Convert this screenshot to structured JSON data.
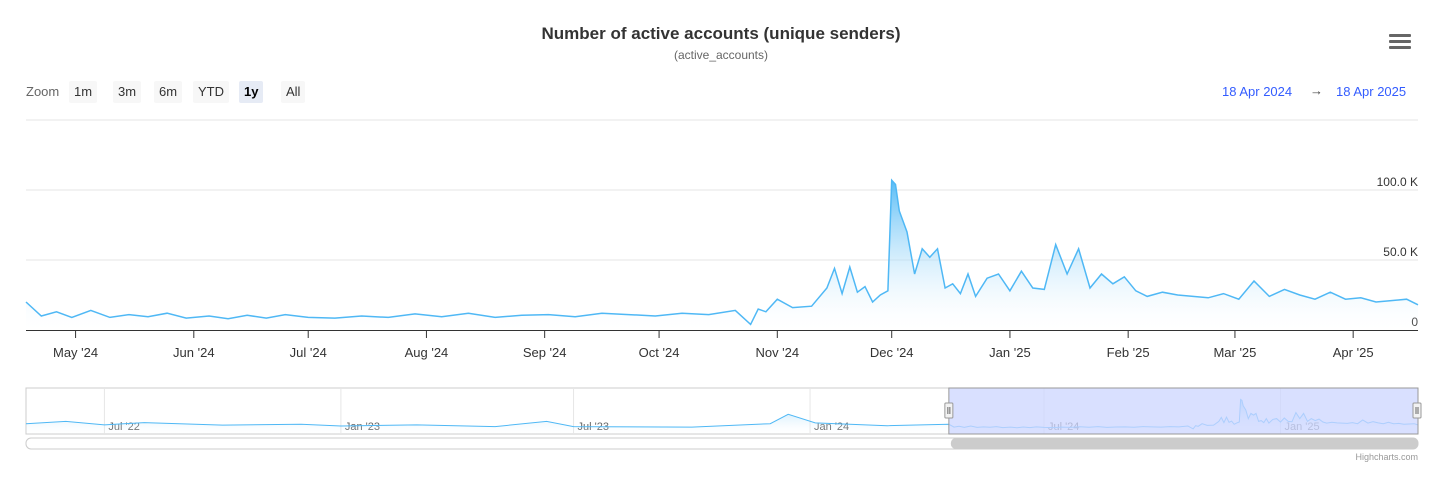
{
  "title": "Number of active accounts (unique senders)",
  "subtitle": "(active_accounts)",
  "zoom": {
    "label": "Zoom",
    "buttons": [
      "1m",
      "3m",
      "6m",
      "YTD",
      "1y",
      "All"
    ],
    "selected": "1y"
  },
  "range": {
    "from": "18 Apr 2024",
    "arrow": "→",
    "to": "18 Apr 2025"
  },
  "credits": "Highcharts.com",
  "colors": {
    "line": "#4fb8f5",
    "fill_top": "#4fb8f5",
    "fill_bottom": "#ffffff",
    "range_link": "#335cff",
    "navigator_mask": "#ccd6ff"
  },
  "chart_data": {
    "type": "area",
    "x_start": "2024-04-18",
    "x_end": "2025-04-18",
    "x_ticks": [
      "May '24",
      "Jun '24",
      "Jul '24",
      "Aug '24",
      "Sep '24",
      "Oct '24",
      "Nov '24",
      "Dec '24",
      "Jan '25",
      "Feb '25",
      "Mar '25",
      "Apr '25"
    ],
    "y_ticks": [
      "0",
      "50.0 K",
      "100.0 K"
    ],
    "ylim": [
      0,
      150000
    ],
    "grid": true,
    "series": [
      {
        "x": [
          "2024-04-18",
          "2024-04-22",
          "2024-04-26",
          "2024-04-30",
          "2024-05-05",
          "2024-05-10",
          "2024-05-15",
          "2024-05-20",
          "2024-05-25",
          "2024-05-30",
          "2024-06-05",
          "2024-06-10",
          "2024-06-15",
          "2024-06-20",
          "2024-06-25",
          "2024-07-01",
          "2024-07-08",
          "2024-07-15",
          "2024-07-22",
          "2024-07-29",
          "2024-08-05",
          "2024-08-12",
          "2024-08-19",
          "2024-08-26",
          "2024-09-02",
          "2024-09-09",
          "2024-09-16",
          "2024-09-23",
          "2024-09-30",
          "2024-10-07",
          "2024-10-14",
          "2024-10-21",
          "2024-10-25",
          "2024-10-27",
          "2024-10-29",
          "2024-11-01",
          "2024-11-05",
          "2024-11-10",
          "2024-11-14",
          "2024-11-16",
          "2024-11-18",
          "2024-11-20",
          "2024-11-22",
          "2024-11-24",
          "2024-11-26",
          "2024-11-28",
          "2024-11-30",
          "2024-12-01",
          "2024-12-02",
          "2024-12-03",
          "2024-12-05",
          "2024-12-07",
          "2024-12-09",
          "2024-12-11",
          "2024-12-13",
          "2024-12-15",
          "2024-12-17",
          "2024-12-19",
          "2024-12-21",
          "2024-12-23",
          "2024-12-26",
          "2024-12-29",
          "2025-01-01",
          "2025-01-04",
          "2025-01-07",
          "2025-01-10",
          "2025-01-13",
          "2025-01-16",
          "2025-01-19",
          "2025-01-22",
          "2025-01-25",
          "2025-01-28",
          "2025-01-31",
          "2025-02-03",
          "2025-02-06",
          "2025-02-10",
          "2025-02-14",
          "2025-02-18",
          "2025-02-22",
          "2025-02-26",
          "2025-03-02",
          "2025-03-06",
          "2025-03-10",
          "2025-03-14",
          "2025-03-18",
          "2025-03-22",
          "2025-03-26",
          "2025-03-30",
          "2025-04-03",
          "2025-04-07",
          "2025-04-11",
          "2025-04-15",
          "2025-04-18"
        ],
        "y": [
          20000,
          10000,
          13000,
          9000,
          14000,
          9000,
          11000,
          9500,
          12000,
          8500,
          10000,
          8000,
          10500,
          8500,
          11000,
          9000,
          8500,
          10000,
          9000,
          11500,
          9500,
          12000,
          9000,
          10500,
          11000,
          9500,
          12000,
          11000,
          10000,
          12000,
          11000,
          14000,
          4000,
          15000,
          13000,
          22000,
          16000,
          17000,
          30000,
          44000,
          26000,
          45000,
          27000,
          31000,
          20000,
          25000,
          28000,
          107000,
          104000,
          85000,
          70000,
          40000,
          58000,
          52000,
          58000,
          30000,
          33000,
          26000,
          40000,
          24000,
          37000,
          40000,
          28000,
          42000,
          30000,
          29000,
          61000,
          40000,
          58000,
          30000,
          40000,
          33000,
          38000,
          28000,
          24000,
          27000,
          25000,
          24000,
          23000,
          26000,
          22000,
          35000,
          24000,
          29000,
          25000,
          22000,
          27000,
          22000,
          23000,
          20000,
          21000,
          22000,
          18000
        ]
      }
    ],
    "navigator": {
      "x_ticks": [
        "Jul '22",
        "Jan '23",
        "Jul '23",
        "Jan '24",
        "Jul '24",
        "Jan '25"
      ]
    }
  }
}
